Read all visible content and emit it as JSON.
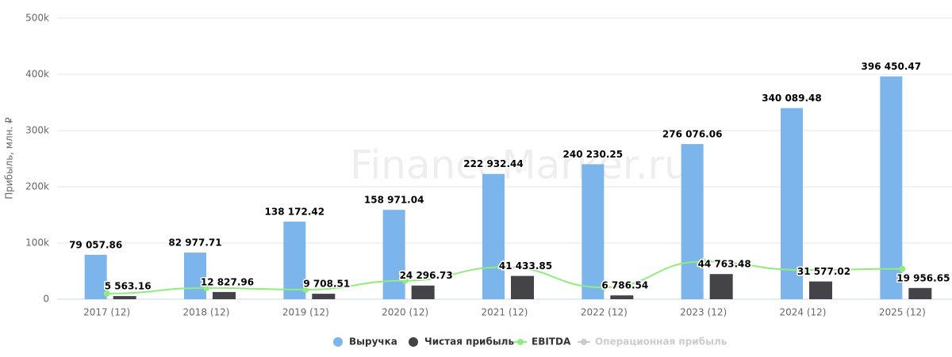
{
  "chart_data": {
    "type": "bar",
    "ylabel": "Прибыль, млн. ₽",
    "annotations": [
      "FinanceMarker.ru"
    ],
    "categories": [
      "2017 (12)",
      "2018 (12)",
      "2019 (12)",
      "2020 (12)",
      "2021 (12)",
      "2022 (12)",
      "2023 (12)",
      "2024 (12)",
      "2025 (12)"
    ],
    "ylim": [
      0,
      500000
    ],
    "yticks": [
      0,
      {
        "value": 100000,
        "label": "100k"
      },
      {
        "value": 200000,
        "label": "200k"
      },
      {
        "value": 300000,
        "label": "300k"
      },
      {
        "value": 400000,
        "label": "400k"
      },
      {
        "value": 500000,
        "label": "500k"
      }
    ],
    "grid": true,
    "series": [
      {
        "name": "Выручка",
        "type": "bar",
        "color": "#7cb5ec",
        "values": [
          79057.86,
          82977.71,
          138172.42,
          158971.04,
          222932.44,
          240230.25,
          276076.06,
          340089.48,
          396450.47
        ],
        "value_labels": [
          "79 057.86",
          "82 977.71",
          "138 172.42",
          "158 971.04",
          "222 932.44",
          "240 230.25",
          "276 076.06",
          "340 089.48",
          "396 450.47"
        ]
      },
      {
        "name": "Чистая прибыль",
        "type": "bar",
        "color": "#434348",
        "values": [
          5563.16,
          12827.96,
          9708.51,
          24296.73,
          41433.85,
          6786.54,
          44763.48,
          31577.02,
          19956.65
        ],
        "value_labels": [
          "5 563.16",
          "12 827.96",
          "9 708.51",
          "24 296.73",
          "41 433.85",
          "6 786.54",
          "44 763.48",
          "31 577.02",
          "19 956.65"
        ]
      },
      {
        "name": "EBITDA",
        "type": "line",
        "color": "#90ed7d",
        "values": [
          10000,
          20000,
          17000,
          33000,
          57000,
          21000,
          67000,
          52000,
          54000
        ]
      },
      {
        "name": "Операционная прибыль",
        "type": "line",
        "color": "#cccccc",
        "hidden": true,
        "values": [
          null,
          null,
          null,
          null,
          null,
          null,
          null,
          null,
          null
        ]
      }
    ]
  }
}
